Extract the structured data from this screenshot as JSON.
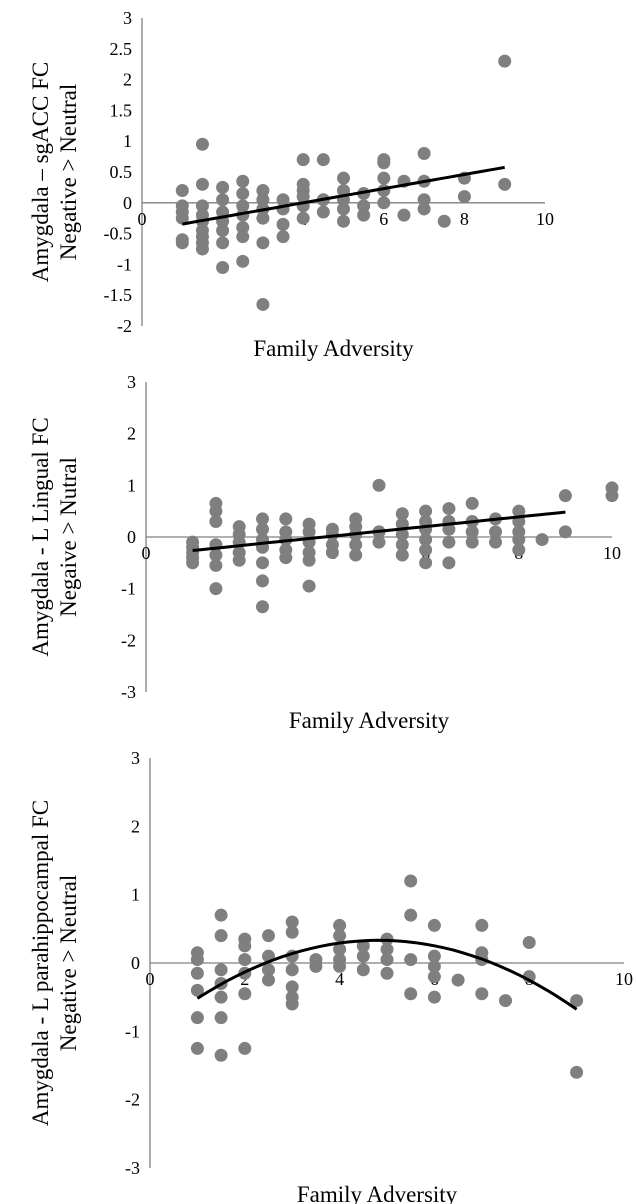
{
  "colors": {
    "points": "#7f7f7f",
    "trend": "#000000",
    "axis": "#808080"
  },
  "chart_data": [
    {
      "type": "scatter",
      "title": "",
      "xlabel": "Family Adversity",
      "ylabel_lines": [
        "Amygdala – sgACC FC",
        "Negative > Neutral"
      ],
      "xlim": [
        0,
        10
      ],
      "ylim": [
        -2,
        3
      ],
      "x_ticks": [
        "0",
        "2",
        "4",
        "6",
        "8",
        "10"
      ],
      "y_ticks": [
        "3",
        "2.5",
        "2",
        "1.5",
        "1",
        "0.5",
        "0",
        "-0.5",
        "-1",
        "-1.5",
        "-2"
      ],
      "grid": false,
      "legend": "none",
      "trendline": {
        "kind": "linear",
        "x_range": [
          1,
          9
        ],
        "coefficients": [
          -0.46,
          0.115
        ]
      },
      "points": [
        [
          1,
          0.2
        ],
        [
          1,
          -0.05
        ],
        [
          1,
          -0.15
        ],
        [
          1,
          -0.25
        ],
        [
          1,
          -0.6
        ],
        [
          1,
          -0.65
        ],
        [
          1.5,
          0.95
        ],
        [
          1.5,
          0.3
        ],
        [
          1.5,
          -0.05
        ],
        [
          1.5,
          -0.2
        ],
        [
          1.5,
          -0.3
        ],
        [
          1.5,
          -0.45
        ],
        [
          1.5,
          -0.55
        ],
        [
          1.5,
          -0.65
        ],
        [
          1.5,
          -0.75
        ],
        [
          2,
          0.25
        ],
        [
          2,
          0.05
        ],
        [
          2,
          -0.15
        ],
        [
          2,
          -0.3
        ],
        [
          2,
          -0.45
        ],
        [
          2,
          -0.65
        ],
        [
          2,
          -1.05
        ],
        [
          2.5,
          0.35
        ],
        [
          2.5,
          0.15
        ],
        [
          2.5,
          -0.05
        ],
        [
          2.5,
          -0.2
        ],
        [
          2.5,
          -0.4
        ],
        [
          2.5,
          -0.55
        ],
        [
          2.5,
          -0.95
        ],
        [
          3,
          0.2
        ],
        [
          3,
          0.05
        ],
        [
          3,
          -0.1
        ],
        [
          3,
          -0.25
        ],
        [
          3,
          -0.65
        ],
        [
          3,
          -1.65
        ],
        [
          3.5,
          0.05
        ],
        [
          3.5,
          -0.1
        ],
        [
          3.5,
          -0.35
        ],
        [
          3.5,
          -0.55
        ],
        [
          4,
          0.7
        ],
        [
          4,
          0.3
        ],
        [
          4,
          0.2
        ],
        [
          4,
          0.1
        ],
        [
          4,
          -0.05
        ],
        [
          4,
          -0.25
        ],
        [
          4.5,
          0.7
        ],
        [
          4.5,
          0.05
        ],
        [
          4.5,
          -0.15
        ],
        [
          5,
          0.4
        ],
        [
          5,
          0.2
        ],
        [
          5,
          0.05
        ],
        [
          5,
          -0.1
        ],
        [
          5,
          -0.3
        ],
        [
          5.5,
          0.15
        ],
        [
          5.5,
          -0.05
        ],
        [
          5.5,
          -0.2
        ],
        [
          6,
          0.7
        ],
        [
          6,
          0.65
        ],
        [
          6,
          0.4
        ],
        [
          6,
          0.2
        ],
        [
          6,
          0.0
        ],
        [
          6.5,
          0.35
        ],
        [
          6.5,
          -0.2
        ],
        [
          7,
          0.8
        ],
        [
          7,
          0.35
        ],
        [
          7,
          0.05
        ],
        [
          7,
          -0.1
        ],
        [
          7.5,
          -0.3
        ],
        [
          8,
          0.4
        ],
        [
          8,
          0.1
        ],
        [
          9,
          2.3
        ],
        [
          9,
          0.3
        ]
      ]
    },
    {
      "type": "scatter",
      "title": "",
      "xlabel": "Family Adversity",
      "ylabel_lines": [
        "Amygdala - L Lingual FC",
        "Negaive > Nutral"
      ],
      "xlim": [
        0,
        10
      ],
      "ylim": [
        -3,
        3
      ],
      "x_ticks": [
        "0",
        "2",
        "4",
        "6",
        "8",
        "10"
      ],
      "y_ticks": [
        "3",
        "2",
        "1",
        "0",
        "-1",
        "-2",
        "-3"
      ],
      "grid": false,
      "legend": "none",
      "trendline": {
        "kind": "linear",
        "x_range": [
          1,
          9
        ],
        "coefficients": [
          -0.355,
          0.093
        ]
      },
      "points": [
        [
          1,
          -0.1
        ],
        [
          1,
          -0.2
        ],
        [
          1,
          -0.3
        ],
        [
          1,
          -0.4
        ],
        [
          1,
          -0.5
        ],
        [
          1.5,
          0.65
        ],
        [
          1.5,
          0.5
        ],
        [
          1.5,
          0.3
        ],
        [
          1.5,
          -0.15
        ],
        [
          1.5,
          -0.35
        ],
        [
          1.5,
          -0.55
        ],
        [
          1.5,
          -1.0
        ],
        [
          2,
          0.2
        ],
        [
          2,
          0.05
        ],
        [
          2,
          -0.1
        ],
        [
          2,
          -0.3
        ],
        [
          2,
          -0.45
        ],
        [
          2.5,
          0.35
        ],
        [
          2.5,
          0.15
        ],
        [
          2.5,
          -0.05
        ],
        [
          2.5,
          -0.2
        ],
        [
          2.5,
          -0.5
        ],
        [
          2.5,
          -0.85
        ],
        [
          2.5,
          -1.35
        ],
        [
          3,
          0.35
        ],
        [
          3,
          0.1
        ],
        [
          3,
          -0.05
        ],
        [
          3,
          -0.25
        ],
        [
          3,
          -0.4
        ],
        [
          3.5,
          0.25
        ],
        [
          3.5,
          0.1
        ],
        [
          3.5,
          -0.1
        ],
        [
          3.5,
          -0.3
        ],
        [
          3.5,
          -0.45
        ],
        [
          3.5,
          -0.95
        ],
        [
          4,
          0.15
        ],
        [
          4,
          0.05
        ],
        [
          4,
          -0.15
        ],
        [
          4,
          -0.3
        ],
        [
          4.5,
          0.35
        ],
        [
          4.5,
          0.2
        ],
        [
          4.5,
          0.05
        ],
        [
          4.5,
          -0.15
        ],
        [
          4.5,
          -0.35
        ],
        [
          5,
          1.0
        ],
        [
          5,
          0.1
        ],
        [
          5,
          -0.1
        ],
        [
          5.5,
          0.45
        ],
        [
          5.5,
          0.25
        ],
        [
          5.5,
          0.05
        ],
        [
          5.5,
          -0.15
        ],
        [
          5.5,
          -0.35
        ],
        [
          6,
          0.5
        ],
        [
          6,
          0.3
        ],
        [
          6,
          0.15
        ],
        [
          6,
          -0.05
        ],
        [
          6,
          -0.25
        ],
        [
          6,
          -0.5
        ],
        [
          6.5,
          0.55
        ],
        [
          6.5,
          0.3
        ],
        [
          6.5,
          0.15
        ],
        [
          6.5,
          -0.1
        ],
        [
          6.5,
          -0.5
        ],
        [
          7,
          0.65
        ],
        [
          7,
          0.3
        ],
        [
          7,
          0.1
        ],
        [
          7,
          -0.1
        ],
        [
          7.5,
          0.35
        ],
        [
          7.5,
          0.1
        ],
        [
          7.5,
          -0.1
        ],
        [
          8,
          0.5
        ],
        [
          8,
          0.3
        ],
        [
          8,
          0.1
        ],
        [
          8,
          -0.05
        ],
        [
          8,
          -0.25
        ],
        [
          8.5,
          -0.05
        ],
        [
          9,
          0.8
        ],
        [
          9,
          0.1
        ],
        [
          10,
          0.95
        ],
        [
          10,
          0.8
        ]
      ]
    },
    {
      "type": "scatter",
      "title": "",
      "xlabel": "Family Adversity",
      "ylabel_lines": [
        "Amygdala - L parahippocampal FC",
        "Negative > Neutral"
      ],
      "xlim": [
        0,
        10
      ],
      "ylim": [
        -3,
        3
      ],
      "x_ticks": [
        "0",
        "2",
        "4",
        "6",
        "8",
        "10"
      ],
      "y_ticks": [
        "3",
        "2",
        "1",
        "0",
        "-1",
        "-2",
        "-3"
      ],
      "grid": false,
      "legend": "none",
      "trendline": {
        "kind": "quadratic",
        "x_range": [
          1,
          9
        ],
        "coefficients": [
          -1.02,
          0.56,
          -0.058
        ]
      },
      "points": [
        [
          1,
          0.15
        ],
        [
          1,
          0.05
        ],
        [
          1,
          -0.15
        ],
        [
          1,
          -0.4
        ],
        [
          1,
          -0.8
        ],
        [
          1,
          -1.25
        ],
        [
          1.5,
          0.7
        ],
        [
          1.5,
          0.4
        ],
        [
          1.5,
          -0.1
        ],
        [
          1.5,
          -0.3
        ],
        [
          1.5,
          -0.5
        ],
        [
          1.5,
          -0.8
        ],
        [
          1.5,
          -1.35
        ],
        [
          2,
          0.35
        ],
        [
          2,
          0.25
        ],
        [
          2,
          0.05
        ],
        [
          2,
          -0.15
        ],
        [
          2,
          -0.45
        ],
        [
          2,
          -1.25
        ],
        [
          2.5,
          0.4
        ],
        [
          2.5,
          0.1
        ],
        [
          2.5,
          -0.1
        ],
        [
          2.5,
          -0.25
        ],
        [
          3,
          0.6
        ],
        [
          3,
          0.45
        ],
        [
          3,
          0.1
        ],
        [
          3,
          -0.1
        ],
        [
          3,
          -0.35
        ],
        [
          3,
          -0.5
        ],
        [
          3,
          -0.6
        ],
        [
          3.5,
          0.05
        ],
        [
          3.5,
          -0.05
        ],
        [
          4,
          0.55
        ],
        [
          4,
          0.4
        ],
        [
          4,
          0.2
        ],
        [
          4,
          0.05
        ],
        [
          4,
          -0.05
        ],
        [
          4.5,
          0.25
        ],
        [
          4.5,
          0.1
        ],
        [
          4.5,
          -0.1
        ],
        [
          5,
          0.35
        ],
        [
          5,
          0.2
        ],
        [
          5,
          0.05
        ],
        [
          5,
          -0.15
        ],
        [
          5.5,
          1.2
        ],
        [
          5.5,
          0.7
        ],
        [
          5.5,
          0.05
        ],
        [
          5.5,
          -0.45
        ],
        [
          6,
          0.55
        ],
        [
          6,
          0.1
        ],
        [
          6,
          -0.05
        ],
        [
          6,
          -0.2
        ],
        [
          6,
          -0.5
        ],
        [
          6.5,
          -0.25
        ],
        [
          7,
          0.55
        ],
        [
          7,
          0.15
        ],
        [
          7,
          0.05
        ],
        [
          7,
          -0.45
        ],
        [
          7.5,
          -0.55
        ],
        [
          8,
          0.3
        ],
        [
          8,
          -0.2
        ],
        [
          9,
          -0.55
        ],
        [
          9,
          -1.6
        ]
      ]
    }
  ]
}
